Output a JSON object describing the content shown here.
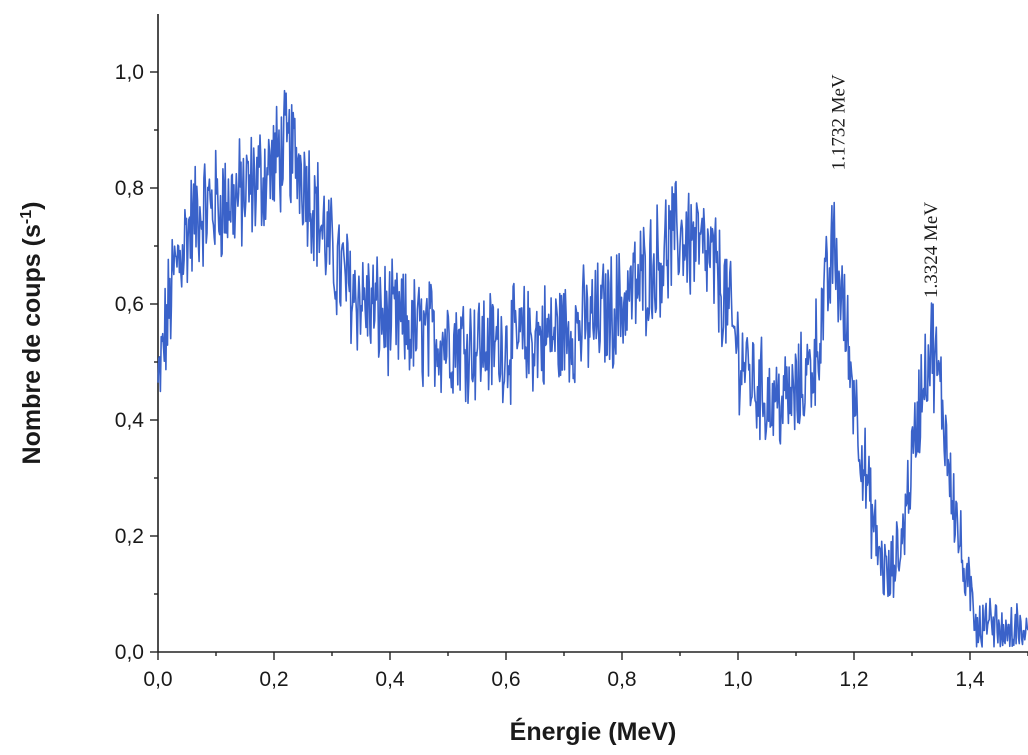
{
  "chart_data": {
    "type": "line",
    "xlabel": "Énergie (MeV)",
    "ylabel": "Nombre de coups (s",
    "ylabel_sup": "-1",
    "ylabel_close": ")",
    "xlim": [
      0.0,
      1.5
    ],
    "ylim": [
      0.0,
      1.1
    ],
    "x_ticks": [
      "0,0",
      "0,2",
      "0,4",
      "0,6",
      "0,8",
      "1,0",
      "1,2",
      "1,4"
    ],
    "x_tick_values": [
      0.0,
      0.2,
      0.4,
      0.6,
      0.8,
      1.0,
      1.2,
      1.4
    ],
    "y_ticks": [
      "0,0",
      "0,2",
      "0,4",
      "0,6",
      "0,8",
      "1,0"
    ],
    "y_tick_values": [
      0.0,
      0.2,
      0.4,
      0.6,
      0.8,
      1.0
    ],
    "grid": false,
    "legend": "none",
    "series": [
      {
        "color": "#3a62c9",
        "x": [
          0.0,
          0.01,
          0.02,
          0.03,
          0.05,
          0.07,
          0.1,
          0.13,
          0.15,
          0.18,
          0.2,
          0.22,
          0.24,
          0.26,
          0.28,
          0.3,
          0.33,
          0.36,
          0.4,
          0.45,
          0.5,
          0.55,
          0.6,
          0.65,
          0.7,
          0.75,
          0.8,
          0.85,
          0.88,
          0.9,
          0.93,
          0.96,
          0.98,
          1.0,
          1.03,
          1.06,
          1.1,
          1.13,
          1.15,
          1.165,
          1.18,
          1.2,
          1.22,
          1.24,
          1.26,
          1.28,
          1.3,
          1.32,
          1.335,
          1.35,
          1.37,
          1.39,
          1.41,
          1.43,
          1.45,
          1.48,
          1.5
        ],
        "y": [
          0.45,
          0.53,
          0.6,
          0.66,
          0.72,
          0.76,
          0.77,
          0.78,
          0.79,
          0.82,
          0.84,
          0.87,
          0.85,
          0.8,
          0.74,
          0.68,
          0.63,
          0.6,
          0.57,
          0.55,
          0.54,
          0.53,
          0.53,
          0.54,
          0.55,
          0.57,
          0.6,
          0.66,
          0.7,
          0.72,
          0.7,
          0.66,
          0.6,
          0.52,
          0.46,
          0.43,
          0.44,
          0.5,
          0.6,
          0.7,
          0.6,
          0.45,
          0.3,
          0.18,
          0.12,
          0.18,
          0.33,
          0.48,
          0.53,
          0.44,
          0.28,
          0.13,
          0.06,
          0.04,
          0.03,
          0.025,
          0.02
        ]
      }
    ],
    "annotations": [
      {
        "text": "1.1732 MeV",
        "x": 1.1732,
        "y": 0.82
      },
      {
        "text": "1.3324 MeV",
        "x": 1.3324,
        "y": 0.6
      }
    ]
  }
}
